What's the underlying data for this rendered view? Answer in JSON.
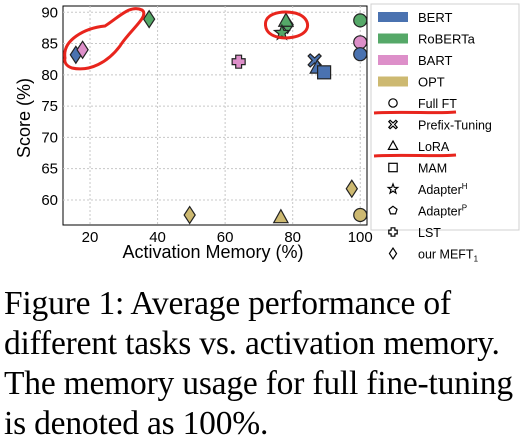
{
  "chart_data": {
    "type": "scatter",
    "xlabel": "Activation Memory (%)",
    "ylabel": "Score (%)",
    "xlim": [
      12,
      102
    ],
    "ylim": [
      56,
      91
    ],
    "xticks": [
      20,
      40,
      60,
      80,
      100
    ],
    "yticks": [
      60,
      65,
      70,
      75,
      80,
      85,
      90
    ],
    "grid": true,
    "legend_position": "right",
    "models": [
      {
        "name": "BERT",
        "color": "#4a72b0"
      },
      {
        "name": "RoBERTa",
        "color": "#55a868"
      },
      {
        "name": "BART",
        "color": "#dd8fc9"
      },
      {
        "name": "OPT",
        "color": "#cdb971"
      }
    ],
    "methods": [
      {
        "name": "Full FT",
        "marker": "circle"
      },
      {
        "name": "Prefix-Tuning",
        "marker": "x-cross"
      },
      {
        "name": "LoRA",
        "marker": "triangle"
      },
      {
        "name": "MAM",
        "marker": "square"
      },
      {
        "name": "Adapter",
        "sup": "H",
        "marker": "star"
      },
      {
        "name": "Adapter",
        "sup": "P",
        "marker": "pentagon"
      },
      {
        "name": "LST",
        "marker": "plus"
      },
      {
        "name": "our MEFT",
        "sub": "1",
        "marker": "diamond"
      }
    ],
    "points": [
      {
        "model": "RoBERTa",
        "method": "Full FT",
        "x": 100,
        "y": 88.7
      },
      {
        "model": "BART",
        "method": "Full FT",
        "x": 100,
        "y": 85.2
      },
      {
        "model": "BERT",
        "method": "Full FT",
        "x": 100,
        "y": 83.3
      },
      {
        "model": "OPT",
        "method": "Full FT",
        "x": 100,
        "y": 57.6
      },
      {
        "model": "OPT",
        "method": "our MEFT",
        "x": 97.5,
        "y": 61.8
      },
      {
        "model": "RoBERTa",
        "method": "our MEFT",
        "x": 37.5,
        "y": 88.9
      },
      {
        "model": "BERT",
        "method": "our MEFT",
        "x": 15.8,
        "y": 83.2
      },
      {
        "model": "BART",
        "method": "our MEFT",
        "x": 17.8,
        "y": 84.0
      },
      {
        "model": "OPT",
        "method": "our MEFT",
        "x": 49.5,
        "y": 57.6
      },
      {
        "model": "OPT",
        "method": "LoRA",
        "x": 76.5,
        "y": 57.2
      },
      {
        "model": "BART",
        "method": "LST",
        "x": 64,
        "y": 82.1
      },
      {
        "model": "RoBERTa",
        "method": "our MEFT",
        "x": 78.5,
        "y": 88.0
      },
      {
        "model": "RoBERTa",
        "method": "LoRA",
        "x": 78.0,
        "y": 88.6
      },
      {
        "model": "RoBERTa",
        "method": "Adapter H",
        "x": 76.8,
        "y": 86.7
      },
      {
        "model": "BERT",
        "method": "Prefix-Tuning",
        "x": 86.5,
        "y": 82.3
      },
      {
        "model": "BERT",
        "method": "LoRA",
        "x": 87.3,
        "y": 81.1
      },
      {
        "model": "BERT",
        "method": "MAM",
        "x": 89.3,
        "y": 80.4
      }
    ],
    "highlights": [
      {
        "method": "Full FT",
        "underlined": true
      },
      {
        "method": "LoRA",
        "underlined": true
      }
    ]
  },
  "caption": "Figure 1: Average performance of different tasks vs. activation memory. The memory usage for full fine-tuning is denoted as 100%."
}
